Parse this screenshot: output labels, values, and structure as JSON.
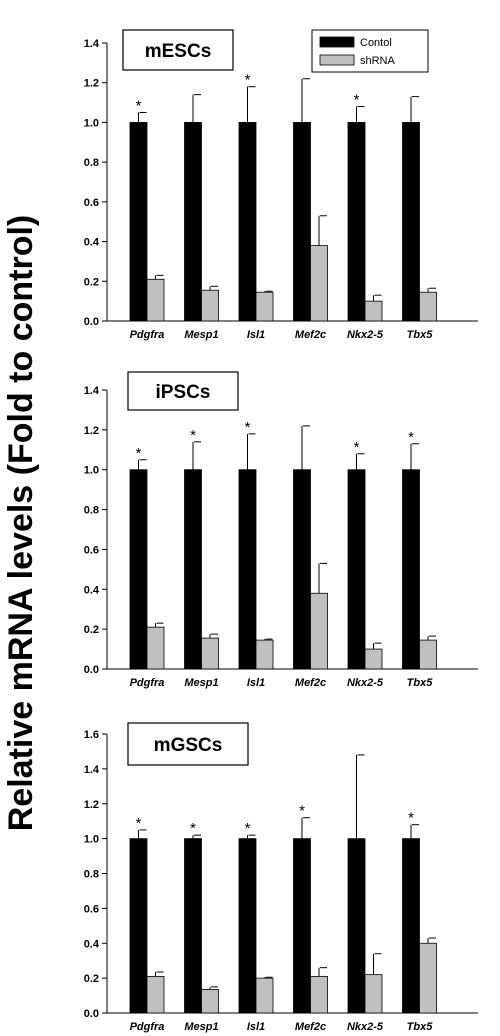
{
  "ylabel": "Relative mRNA levels (Fold to control)",
  "legend": {
    "entries": [
      {
        "label": "Contol",
        "color": "#000000"
      },
      {
        "label": "shRNA",
        "color": "#c0c0c0"
      }
    ],
    "placement": "top-right of first panel"
  },
  "chart_data": [
    {
      "type": "bar",
      "title": "mESCs",
      "categories": [
        "Pdgfra",
        "Mesp1",
        "Isl1",
        "Mef2c",
        "Nkx2-5",
        "Tbx5"
      ],
      "ylim": [
        0,
        1.4
      ],
      "yticks": [
        "0.0",
        "0.2",
        "0.4",
        "0.6",
        "0.8",
        "1.0",
        "1.2",
        "1.4"
      ],
      "grid": false,
      "series": [
        {
          "name": "Contol",
          "color": "#000000",
          "values": [
            1.0,
            1.0,
            1.0,
            1.0,
            1.0,
            1.0
          ],
          "errors": [
            0.05,
            0.14,
            0.18,
            0.22,
            0.08,
            0.13
          ]
        },
        {
          "name": "shRNA",
          "color": "#c0c0c0",
          "values": [
            0.21,
            0.155,
            0.145,
            0.38,
            0.1,
            0.145
          ],
          "errors": [
            0.02,
            0.02,
            0.005,
            0.15,
            0.03,
            0.02
          ]
        }
      ],
      "significance": [
        "*",
        "",
        "*",
        "",
        "*",
        ""
      ]
    },
    {
      "type": "bar",
      "title": "iPSCs",
      "categories": [
        "Pdgfra",
        "Mesp1",
        "Isl1",
        "Mef2c",
        "Nkx2-5",
        "Tbx5"
      ],
      "ylim": [
        0,
        1.4
      ],
      "yticks": [
        "0.0",
        "0.2",
        "0.4",
        "0.6",
        "0.8",
        "1.0",
        "1.2",
        "1.4"
      ],
      "grid": false,
      "series": [
        {
          "name": "Contol",
          "color": "#000000",
          "values": [
            1.0,
            1.0,
            1.0,
            1.0,
            1.0,
            1.0
          ],
          "errors": [
            0.05,
            0.14,
            0.18,
            0.22,
            0.08,
            0.13
          ]
        },
        {
          "name": "shRNA",
          "color": "#c0c0c0",
          "values": [
            0.21,
            0.155,
            0.145,
            0.38,
            0.1,
            0.145
          ],
          "errors": [
            0.02,
            0.02,
            0.005,
            0.15,
            0.03,
            0.02
          ]
        }
      ],
      "significance": [
        "*",
        "*",
        "*",
        "",
        "*",
        "*"
      ]
    },
    {
      "type": "bar",
      "title": "mGSCs",
      "categories": [
        "Pdgfra",
        "Mesp1",
        "Isl1",
        "Mef2c",
        "Nkx2-5",
        "Tbx5"
      ],
      "ylim": [
        0,
        1.6
      ],
      "yticks": [
        "0.0",
        "0.2",
        "0.4",
        "0.6",
        "0.8",
        "1.0",
        "1.2",
        "1.4",
        "1.6"
      ],
      "grid": false,
      "series": [
        {
          "name": "Contol",
          "color": "#000000",
          "values": [
            1.0,
            1.0,
            1.0,
            1.0,
            1.0,
            1.0
          ],
          "errors": [
            0.05,
            0.02,
            0.02,
            0.12,
            0.48,
            0.08
          ]
        },
        {
          "name": "shRNA",
          "color": "#c0c0c0",
          "values": [
            0.21,
            0.135,
            0.2,
            0.21,
            0.22,
            0.4
          ],
          "errors": [
            0.025,
            0.015,
            0.005,
            0.05,
            0.12,
            0.03
          ]
        }
      ],
      "significance": [
        "*",
        "*",
        "*",
        "*",
        "",
        "*"
      ]
    }
  ]
}
